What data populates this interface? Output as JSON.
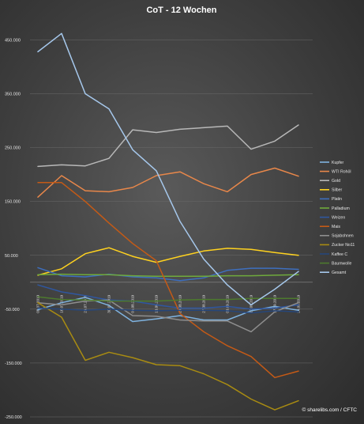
{
  "chart_data": {
    "type": "line",
    "title": "CoT - 12 Wochen",
    "source": "© sharelibs.com / CFTC",
    "x": [
      "09.07.2019",
      "16.07.2019",
      "23.07.2019",
      "30.07.2019",
      "06.08.2019",
      "13.08.2019",
      "20.08.2019",
      "27.08.2019",
      "03.09.2019",
      "10.09.2019",
      "17.09.2019",
      "24.09.2019"
    ],
    "ylim": [
      -250000,
      480000
    ],
    "yticks": [
      -250000,
      -150000,
      -50000,
      50000,
      150000,
      250000,
      350000,
      450000
    ],
    "ytick_labels": [
      "-250.000",
      "-150.000",
      "-50.000",
      "50.000",
      "150.000",
      "250.000",
      "350.000",
      "450.000"
    ],
    "legend_position": "right",
    "grid": true,
    "series": [
      {
        "name": "Kupfer",
        "color": "#7fb3e0",
        "values": [
          -51000,
          -38000,
          -28000,
          -43000,
          -73000,
          -68000,
          -62000,
          -70000,
          -70000,
          -53000,
          -45000,
          -52000
        ]
      },
      {
        "name": "WTI Rohöl",
        "color": "#e8874a",
        "values": [
          158000,
          198000,
          170000,
          168000,
          176000,
          198000,
          205000,
          183000,
          168000,
          200000,
          212000,
          197000
        ]
      },
      {
        "name": "Gold",
        "color": "#b8b8b8",
        "values": [
          215000,
          218000,
          216000,
          230000,
          283000,
          278000,
          284000,
          287000,
          290000,
          247000,
          262000,
          292000
        ]
      },
      {
        "name": "Silber",
        "color": "#ffd21f",
        "values": [
          13000,
          25000,
          53000,
          64000,
          48000,
          37000,
          48000,
          58000,
          63000,
          61000,
          55000,
          50000
        ]
      },
      {
        "name": "Platin",
        "color": "#3e6fbf",
        "values": [
          27000,
          12000,
          10000,
          15000,
          10000,
          8000,
          3000,
          8000,
          22000,
          26000,
          26000,
          24000
        ]
      },
      {
        "name": "Palladium",
        "color": "#6faa3c",
        "values": [
          14000,
          15000,
          14000,
          14000,
          12000,
          11000,
          11000,
          11000,
          12000,
          12000,
          13000,
          14000
        ]
      },
      {
        "name": "Weizen",
        "color": "#2f57a0",
        "values": [
          -5000,
          -18000,
          -25000,
          -33000,
          -35000,
          -42000,
          -48000,
          -48000,
          -45000,
          -50000,
          -48000,
          -42000
        ]
      },
      {
        "name": "Mais",
        "color": "#c45a16",
        "values": [
          185000,
          185000,
          150000,
          110000,
          72000,
          40000,
          -58000,
          -92000,
          -118000,
          -138000,
          -177000,
          -165000
        ]
      },
      {
        "name": "Sojabohnen",
        "color": "#8e8e8e",
        "values": [
          -38000,
          -42000,
          -35000,
          -33000,
          -62000,
          -63000,
          -70000,
          -72000,
          -72000,
          -92000,
          -55000,
          -38000
        ]
      },
      {
        "name": "Zucker No11",
        "color": "#a88b12",
        "values": [
          -38000,
          -65000,
          -145000,
          -130000,
          -140000,
          -153000,
          -155000,
          -170000,
          -190000,
          -217000,
          -237000,
          -220000
        ]
      },
      {
        "name": "Kaffee C",
        "color": "#26467a",
        "values": [
          -48000,
          -50000,
          -52000,
          -50000,
          -52000,
          -53000,
          -52000,
          -52000,
          -53000,
          -57000,
          -53000,
          -55000
        ]
      },
      {
        "name": "Baumwolle",
        "color": "#4d7a2e",
        "values": [
          -27000,
          -32000,
          -33000,
          -35000,
          -35000,
          -35000,
          -33000,
          -32000,
          -32000,
          -30000,
          -30000,
          -30000
        ]
      },
      {
        "name": "Gesamt",
        "color": "#a6c8ec",
        "values": [
          428000,
          462000,
          350000,
          322000,
          246000,
          207000,
          113000,
          43000,
          -5000,
          -42000,
          -13000,
          20000
        ]
      }
    ]
  }
}
